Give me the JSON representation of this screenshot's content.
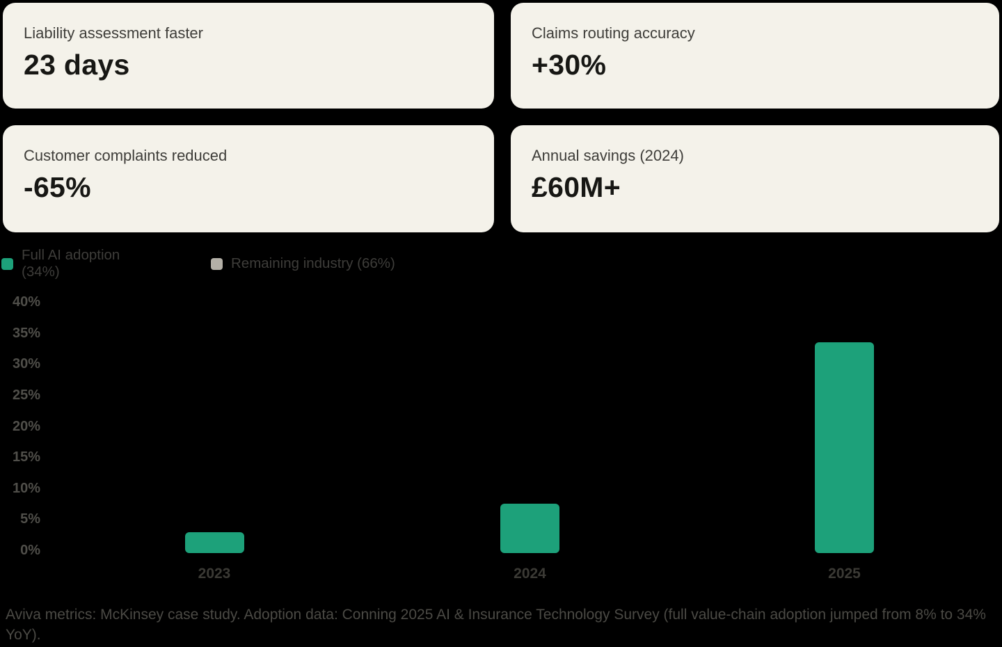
{
  "cards": [
    {
      "label": "Liability assessment faster",
      "value": "23 days"
    },
    {
      "label": "Claims routing accuracy",
      "value": "+30%"
    },
    {
      "label": "Customer complaints reduced",
      "value": "-65%"
    },
    {
      "label": "Annual savings (2024)",
      "value": "£60M+"
    }
  ],
  "chart_data": {
    "type": "bar",
    "title": "",
    "xlabel": "",
    "ylabel": "",
    "categories": [
      "2023",
      "2024",
      "2025"
    ],
    "values": [
      3.4,
      8,
      34
    ],
    "legend": [
      {
        "label": "Full AI adoption (34%)",
        "color": "#1da17a"
      },
      {
        "label": "Remaining industry (66%)",
        "color": "#b4b0a7"
      }
    ],
    "ylim": [
      0,
      40
    ],
    "yticks": [
      0,
      5,
      10,
      15,
      20,
      25,
      30,
      35,
      40
    ],
    "ytick_suffix": "%",
    "grid": false,
    "legend_position": "top-left",
    "bar_color": "#1da17a"
  },
  "footer": {
    "text": "Aviva metrics: McKinsey case study. Adoption data: Conning 2025 AI & Insurance Technology Survey (full value-chain adoption jumped from 8% to 34% YoY)."
  },
  "colors": {
    "background": "#000000",
    "card_background": "#f4f2ea",
    "bar_green": "#1da17a",
    "legend_gray": "#b4b0a7",
    "axis_text": "#504f4a"
  }
}
